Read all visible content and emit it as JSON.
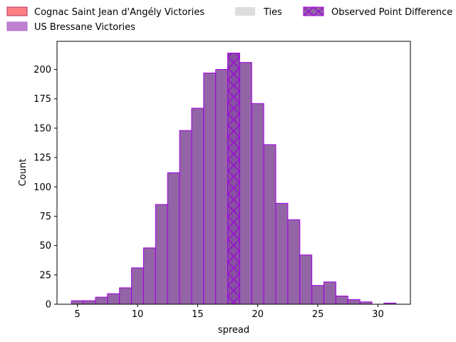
{
  "chart_data": {
    "type": "bar",
    "subtype": "histogram",
    "xlabel": "spread",
    "ylabel": "Count",
    "xlim": [
      3.3,
      32.7
    ],
    "ylim": [
      0,
      224
    ],
    "xticks": [
      5,
      10,
      15,
      20,
      25,
      30
    ],
    "yticks": [
      0,
      25,
      50,
      75,
      100,
      125,
      150,
      175,
      200
    ],
    "grid": false,
    "bin_width": 1,
    "bins": [
      {
        "x0": 4.5,
        "x1": 5.5,
        "count": 3
      },
      {
        "x0": 5.5,
        "x1": 6.5,
        "count": 3
      },
      {
        "x0": 6.5,
        "x1": 7.5,
        "count": 6
      },
      {
        "x0": 7.5,
        "x1": 8.5,
        "count": 9
      },
      {
        "x0": 8.5,
        "x1": 9.5,
        "count": 14
      },
      {
        "x0": 9.5,
        "x1": 10.5,
        "count": 31
      },
      {
        "x0": 10.5,
        "x1": 11.5,
        "count": 48
      },
      {
        "x0": 11.5,
        "x1": 12.5,
        "count": 85
      },
      {
        "x0": 12.5,
        "x1": 13.5,
        "count": 112
      },
      {
        "x0": 13.5,
        "x1": 14.5,
        "count": 148
      },
      {
        "x0": 14.5,
        "x1": 15.5,
        "count": 167
      },
      {
        "x0": 15.5,
        "x1": 16.5,
        "count": 197
      },
      {
        "x0": 16.5,
        "x1": 17.5,
        "count": 200
      },
      {
        "x0": 17.5,
        "x1": 18.5,
        "count": 214
      },
      {
        "x0": 18.5,
        "x1": 19.5,
        "count": 206
      },
      {
        "x0": 19.5,
        "x1": 20.5,
        "count": 171
      },
      {
        "x0": 20.5,
        "x1": 21.5,
        "count": 136
      },
      {
        "x0": 21.5,
        "x1": 22.5,
        "count": 86
      },
      {
        "x0": 22.5,
        "x1": 23.5,
        "count": 72
      },
      {
        "x0": 23.5,
        "x1": 24.5,
        "count": 42
      },
      {
        "x0": 24.5,
        "x1": 25.5,
        "count": 16
      },
      {
        "x0": 25.5,
        "x1": 26.5,
        "count": 19
      },
      {
        "x0": 26.5,
        "x1": 27.5,
        "count": 7
      },
      {
        "x0": 27.5,
        "x1": 28.5,
        "count": 4
      },
      {
        "x0": 28.5,
        "x1": 29.5,
        "count": 2
      },
      {
        "x0": 30.5,
        "x1": 31.5,
        "count": 1
      }
    ],
    "observed_bin": {
      "x0": 17.5,
      "x1": 18.5,
      "count": 214
    },
    "legend": {
      "placement": "top",
      "entries": [
        {
          "label": "Cognac Saint Jean d'Angély Victories",
          "color": "#ff7f85",
          "edge": "#b03060"
        },
        {
          "label": "US Bressane Victories",
          "color": "#c080d0",
          "edge": "#b070c8"
        },
        {
          "label": "Ties",
          "color": "#dddddd",
          "edge": "#dddddd"
        },
        {
          "label": "Observed Point Difference",
          "color": "#9364a6",
          "edge": "#a000e0",
          "hatch": "x"
        }
      ]
    },
    "colors": {
      "bar_fill": "#9364a6",
      "bar_edge": "#a000e0",
      "observed_fill": "#8750a0"
    }
  }
}
